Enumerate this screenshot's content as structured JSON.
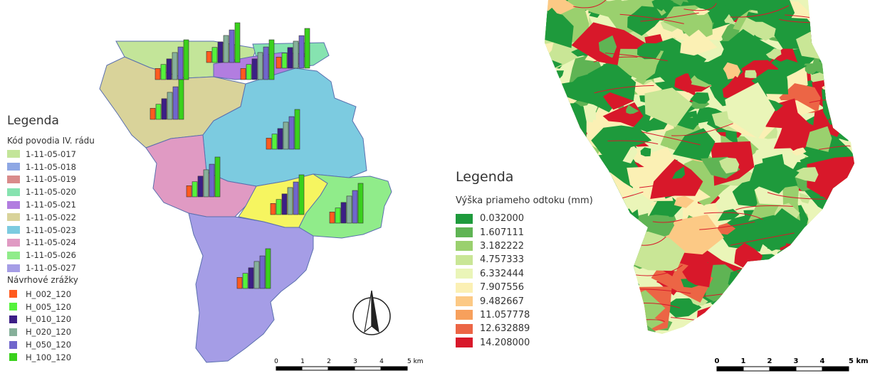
{
  "left_map": {
    "legend": {
      "title": "Legenda",
      "catchment_heading": "Kód povodia IV. rádu",
      "catchments": [
        {
          "label": "1-11-05-017",
          "color": "#c3e599"
        },
        {
          "label": "1-11-05-018",
          "color": "#8ea7e4"
        },
        {
          "label": "1-11-05-019",
          "color": "#d98b8b"
        },
        {
          "label": "1-11-05-020",
          "color": "#86e3b0"
        },
        {
          "label": "1-11-05-021",
          "color": "#b27de0"
        },
        {
          "label": "1-11-05-022",
          "color": "#d9d39a"
        },
        {
          "label": "1-11-05-023",
          "color": "#7ccbe0"
        },
        {
          "label": "1-11-05-024",
          "color": "#e09ac3"
        },
        {
          "label": "1-11-05-026",
          "color": "#90ec8a"
        },
        {
          "label": "1-11-05-027",
          "color": "#a59de6"
        }
      ],
      "rainfall_heading": "Návrhové zrážky",
      "rainfall": [
        {
          "label": "H_002_120",
          "color": "#ff5a1e"
        },
        {
          "label": "H_005_120",
          "color": "#55f23c"
        },
        {
          "label": "H_010_120",
          "color": "#3c1f86"
        },
        {
          "label": "H_020_120",
          "color": "#86b09a"
        },
        {
          "label": "H_050_120",
          "color": "#7066cc"
        },
        {
          "label": "H_100_120",
          "color": "#3ad11c"
        }
      ]
    },
    "scale_bar": {
      "ticks": [
        "0",
        "1",
        "2",
        "3",
        "4",
        "5 km"
      ]
    }
  },
  "right_map": {
    "legend": {
      "title": "Legenda",
      "heading": "Výška priameho odtoku (mm)",
      "classes": [
        {
          "label": "0.032000",
          "color": "#1e9a3c"
        },
        {
          "label": "1.607111",
          "color": "#5fb454"
        },
        {
          "label": "3.182222",
          "color": "#9ad06e"
        },
        {
          "label": "4.757333",
          "color": "#c9e696"
        },
        {
          "label": "6.332444",
          "color": "#eaf5b8"
        },
        {
          "label": "7.907556",
          "color": "#fbf0b4"
        },
        {
          "label": "9.482667",
          "color": "#fcc985"
        },
        {
          "label": "11.057778",
          "color": "#f7a05c"
        },
        {
          "label": "12.632889",
          "color": "#ec6545"
        },
        {
          "label": "14.208000",
          "color": "#d8182a"
        }
      ]
    },
    "scale_bar": {
      "ticks": [
        "0",
        "1",
        "2",
        "3",
        "4",
        "5 km"
      ]
    }
  },
  "north_arrow_icon": "north-arrow-icon"
}
